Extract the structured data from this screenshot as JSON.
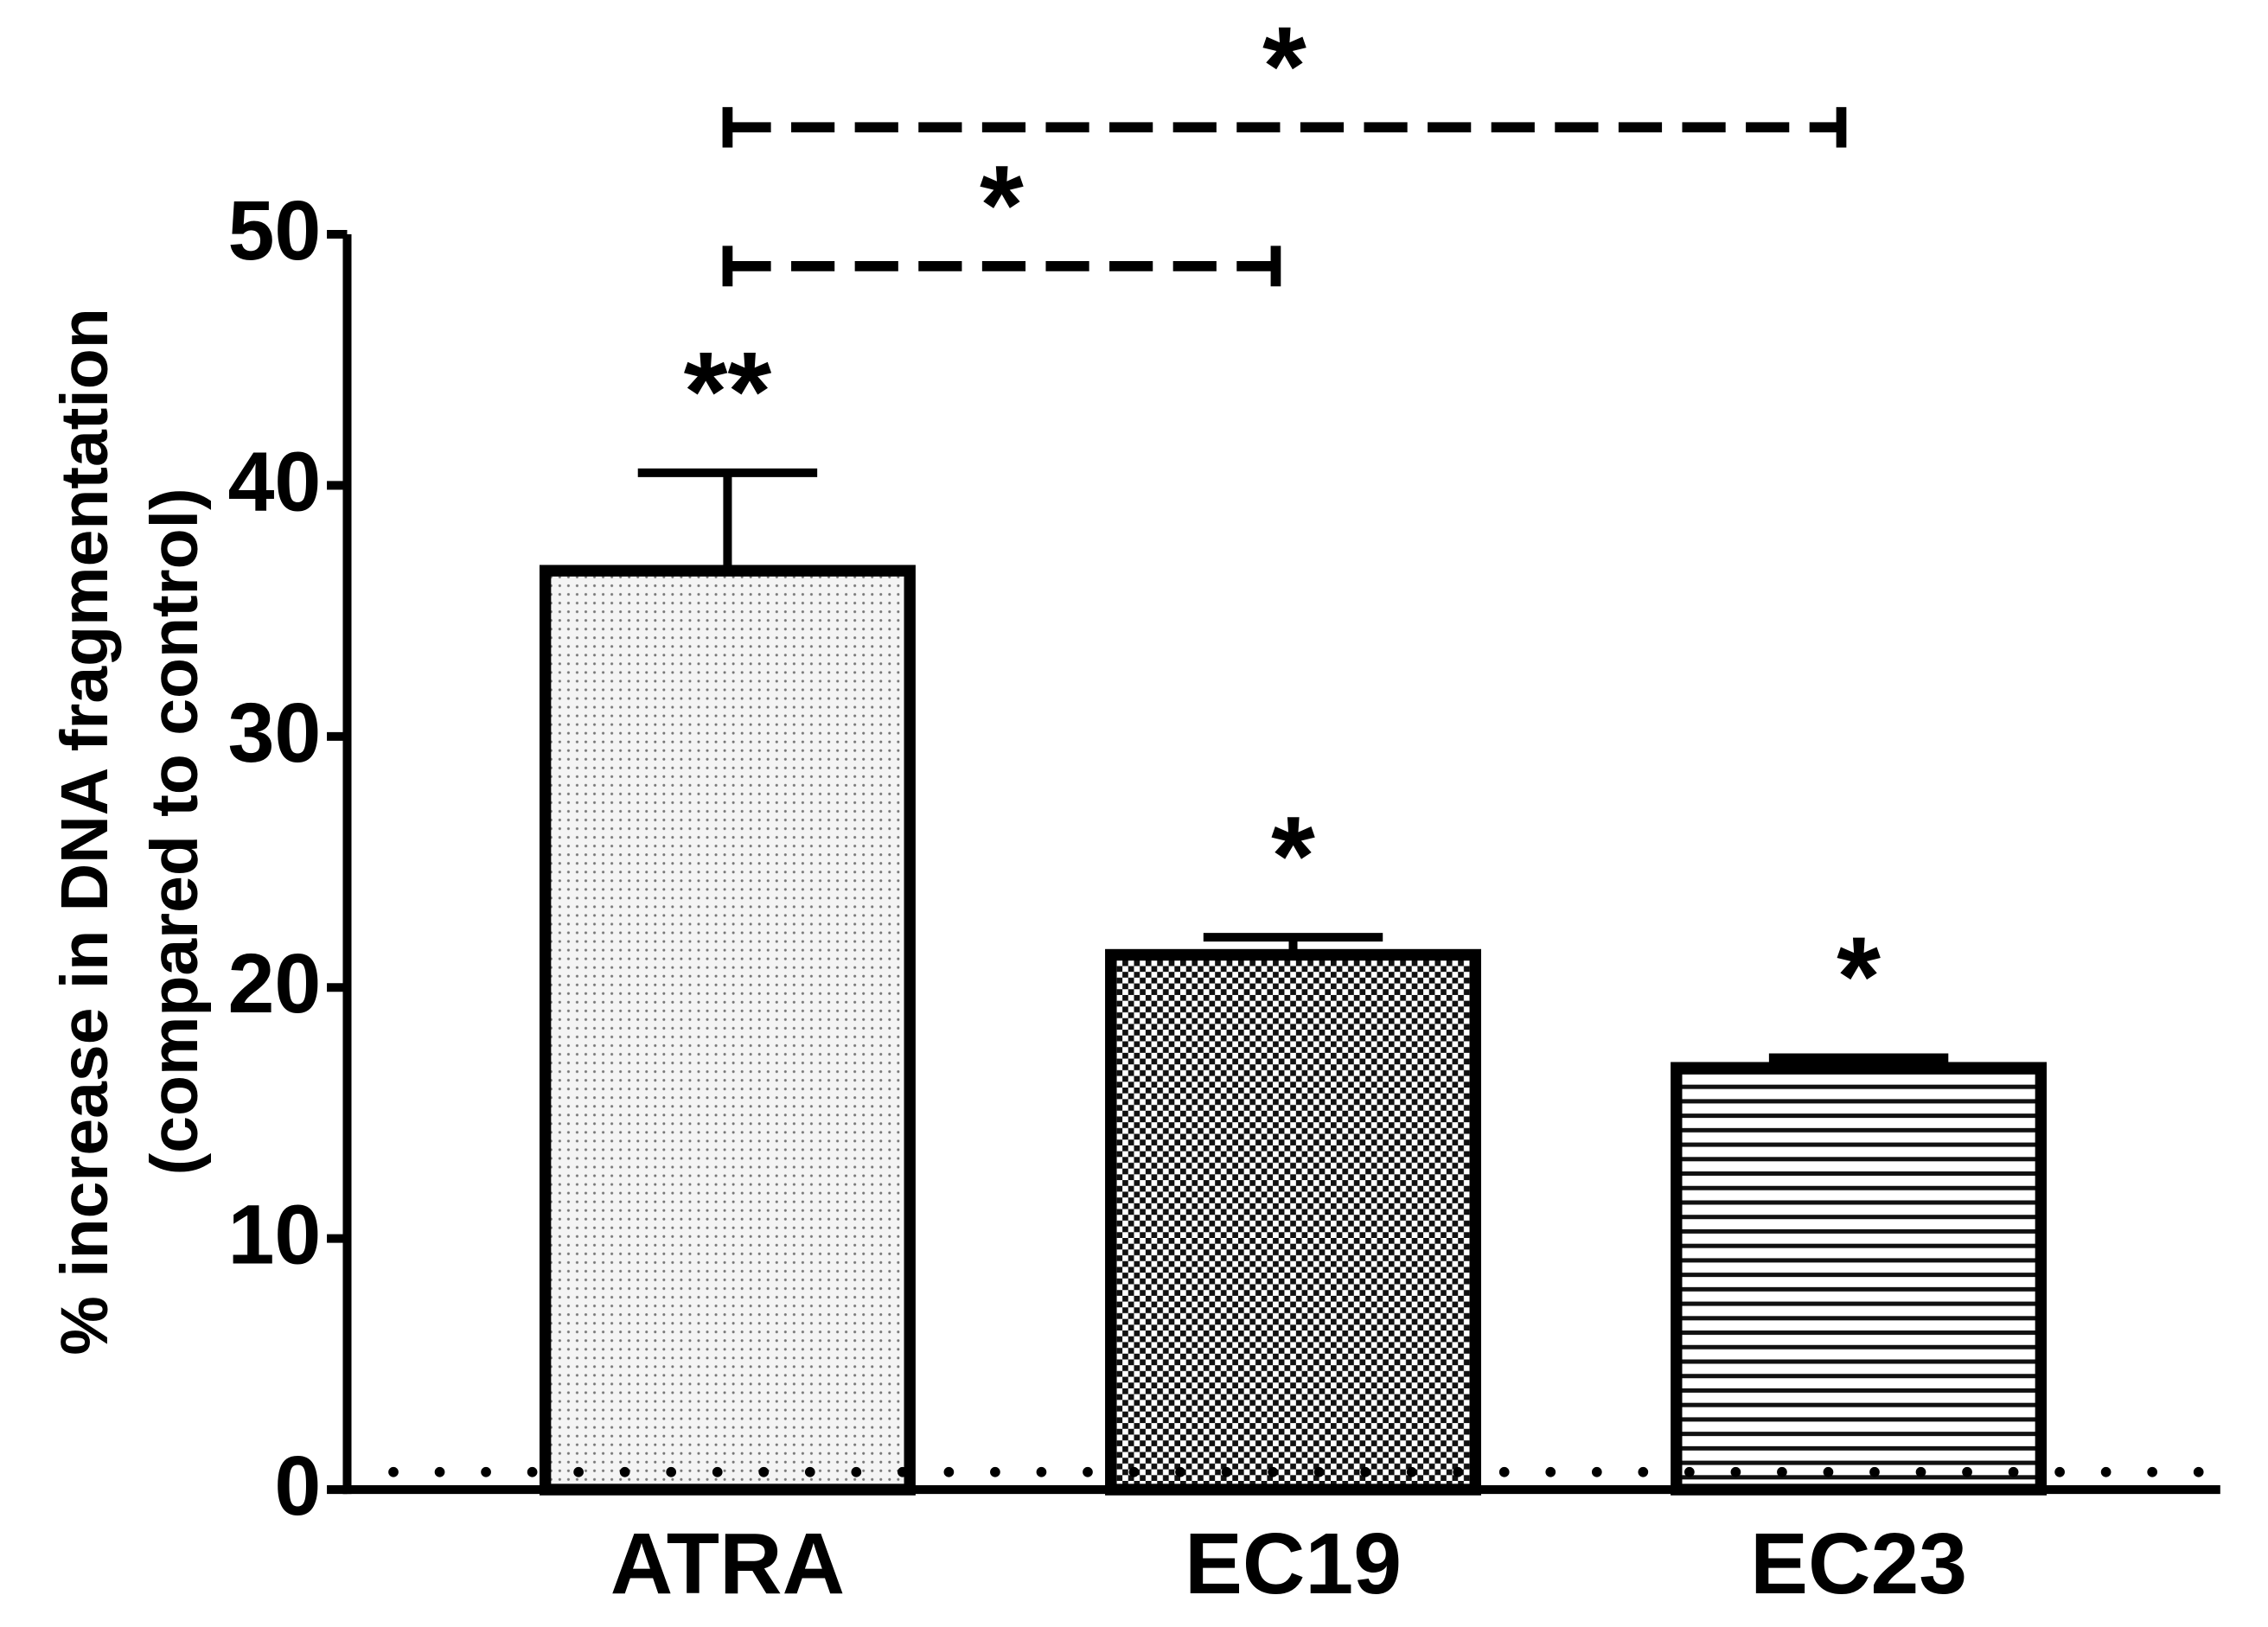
{
  "chart_data": {
    "type": "bar",
    "y_label": [
      "% increase in DNA fragmentation",
      "(compared to control)"
    ],
    "categories": [
      "ATRA",
      "EC19",
      "EC23"
    ],
    "values": [
      36.6,
      21.3,
      16.8
    ],
    "errors": [
      3.9,
      0.7,
      0.4
    ],
    "value_labels": [
      "**",
      "*",
      "*"
    ],
    "comparisons": [
      {
        "pair": [
          "ATRA",
          "EC23"
        ],
        "label": "*"
      },
      {
        "pair": [
          "ATRA",
          "EC19"
        ],
        "label": "*"
      }
    ],
    "reference_line": 0.7,
    "ylim": [
      0,
      50
    ],
    "yticks": [
      0,
      10,
      20,
      30,
      40,
      50
    ],
    "color": "#000000"
  }
}
